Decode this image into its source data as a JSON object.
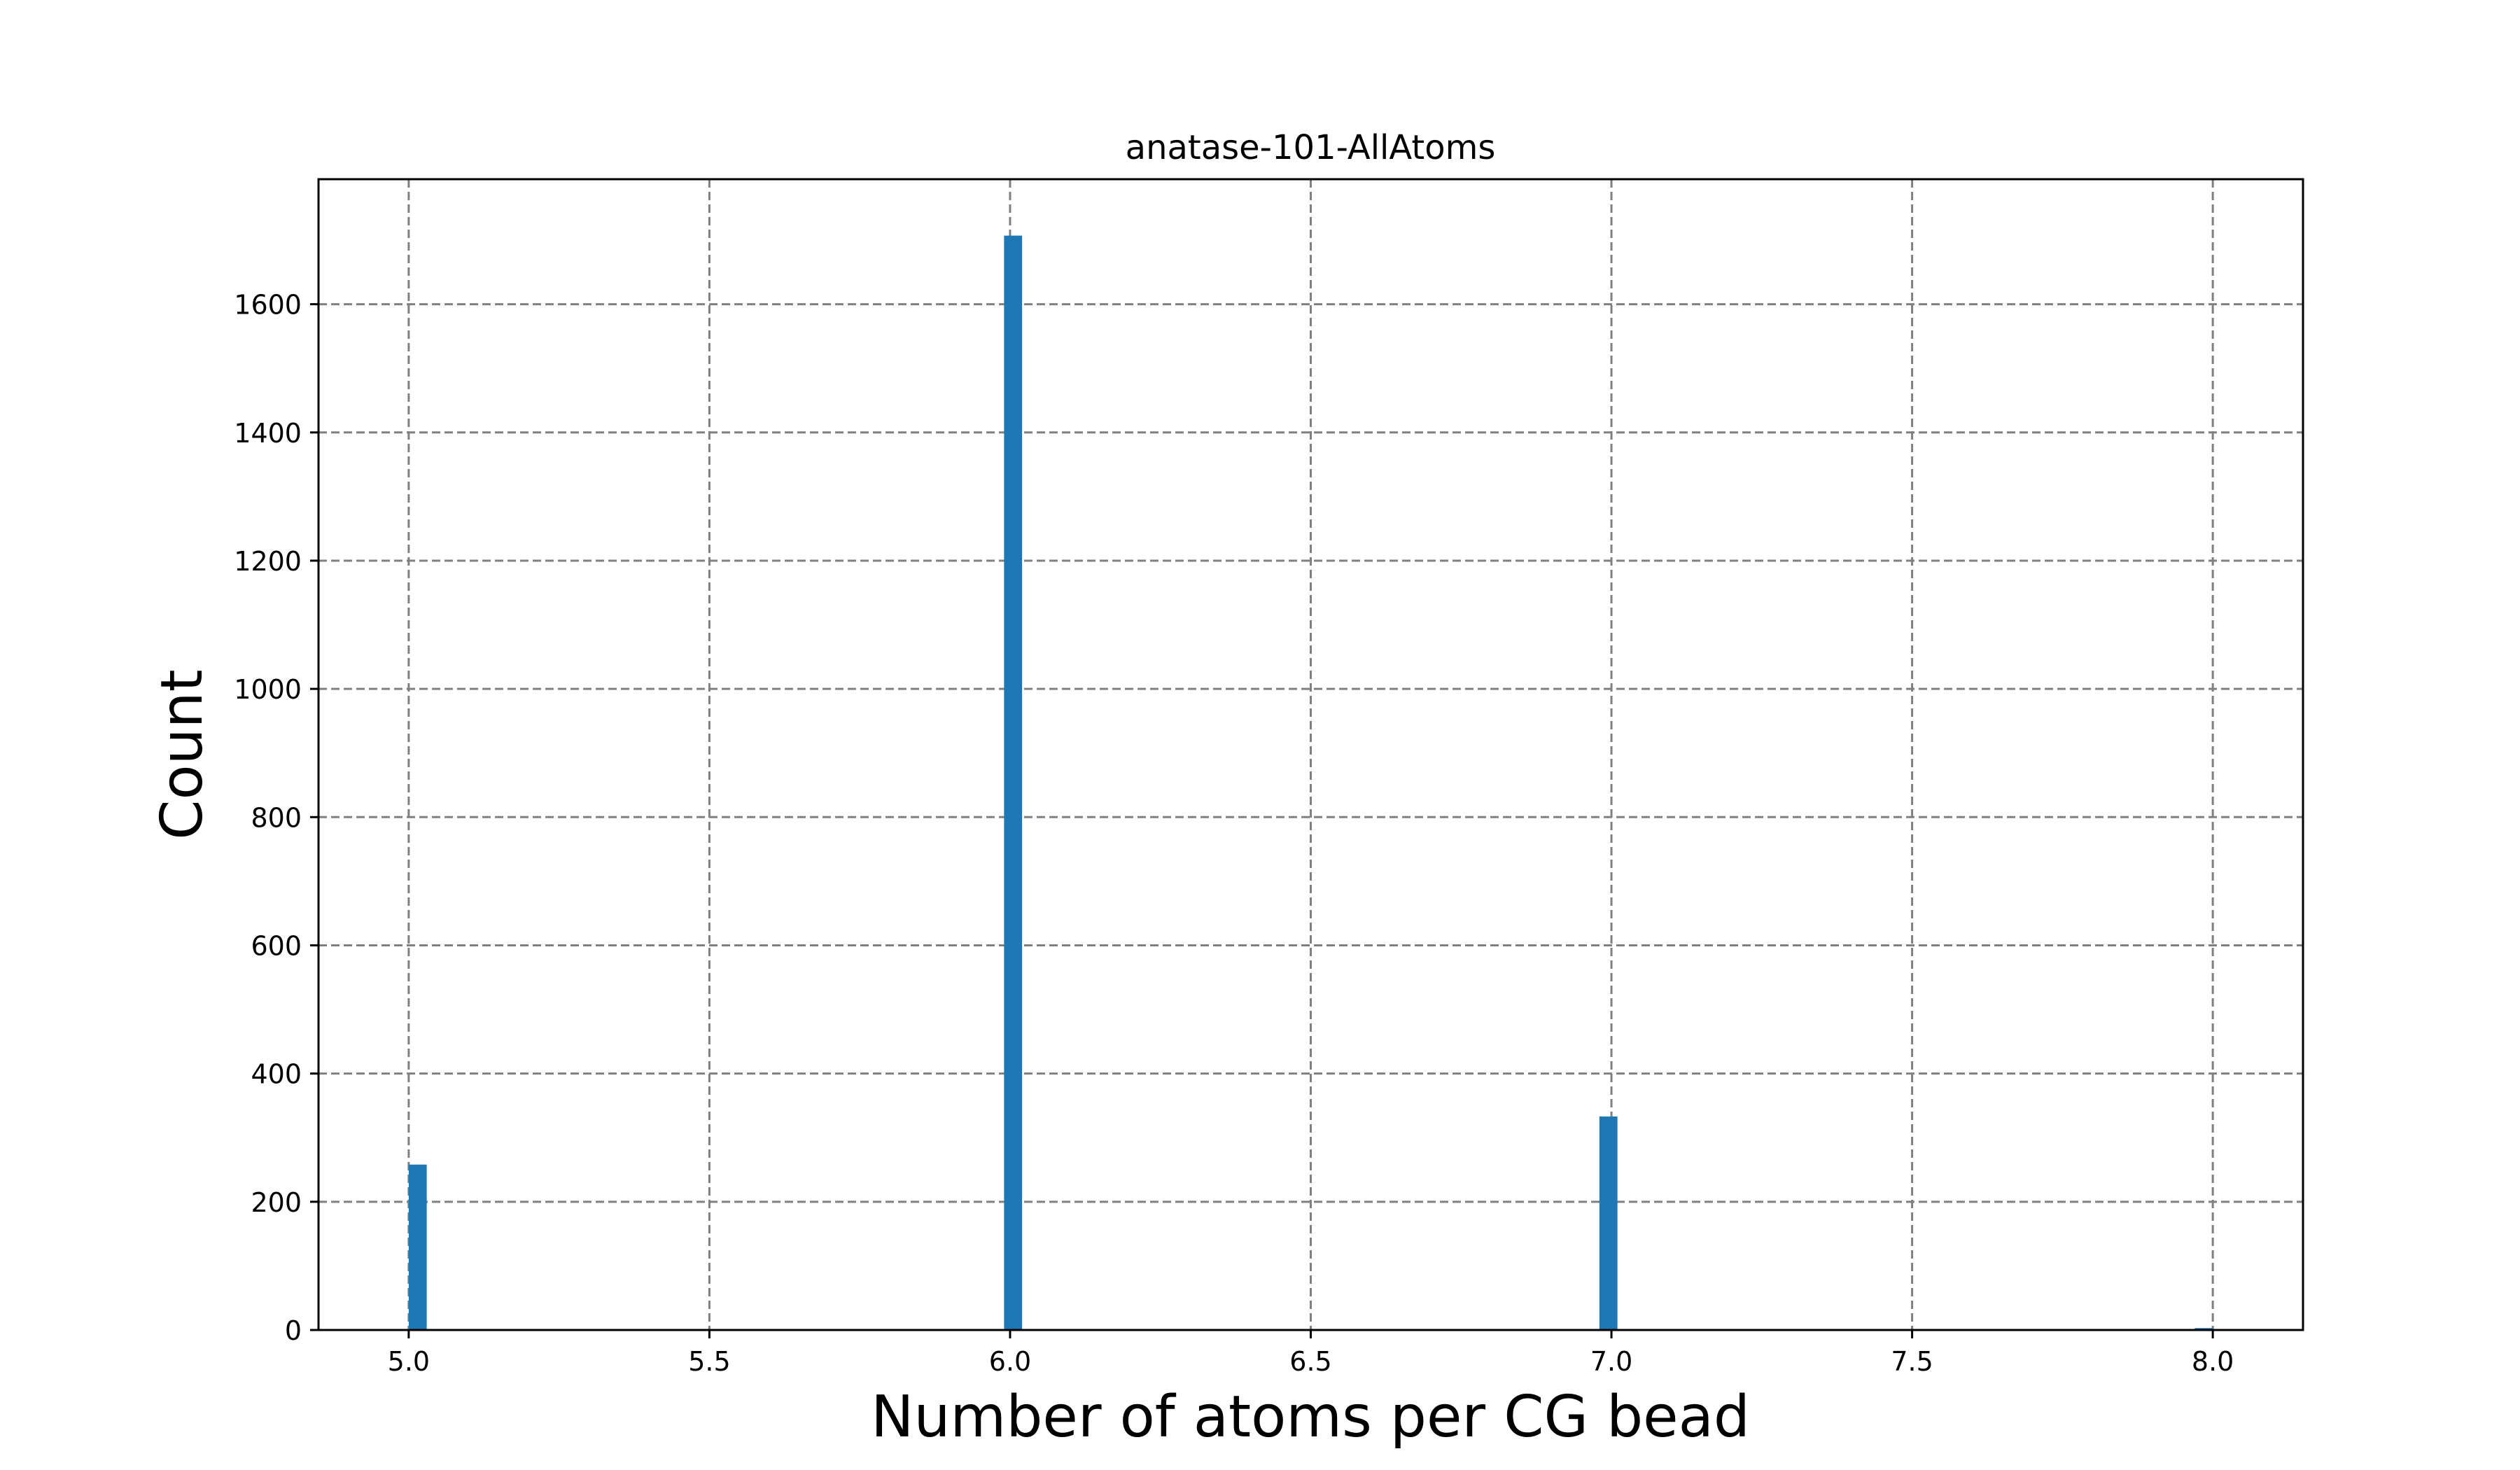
{
  "chart_data": {
    "type": "bar",
    "title": "anatase-101-AllAtoms",
    "xlabel": "Number of atoms per CG bead",
    "ylabel": "Count",
    "xlim": [
      4.85,
      8.15
    ],
    "ylim": [
      0,
      1795
    ],
    "xticks": [
      5.0,
      5.5,
      6.0,
      6.5,
      7.0,
      7.5,
      8.0
    ],
    "xtick_labels": [
      "5.0",
      "5.5",
      "6.0",
      "6.5",
      "7.0",
      "7.5",
      "8.0"
    ],
    "yticks": [
      0,
      200,
      400,
      600,
      800,
      1000,
      1200,
      1400,
      1600
    ],
    "ytick_labels": [
      "0",
      "200",
      "400",
      "600",
      "800",
      "1000",
      "1200",
      "1400",
      "1600"
    ],
    "grid": true,
    "bin_width": 0.03,
    "bars": [
      {
        "x_start": 5.0,
        "x_end": 5.03,
        "value": 258
      },
      {
        "x_start": 5.99,
        "x_end": 6.02,
        "value": 1707
      },
      {
        "x_start": 6.98,
        "x_end": 7.01,
        "value": 333
      },
      {
        "x_start": 7.97,
        "x_end": 8.0,
        "value": 3
      }
    ]
  },
  "colors": {
    "bar": "#1f77b4",
    "grid": "#808080",
    "axes": "#000000",
    "background": "#ffffff"
  }
}
